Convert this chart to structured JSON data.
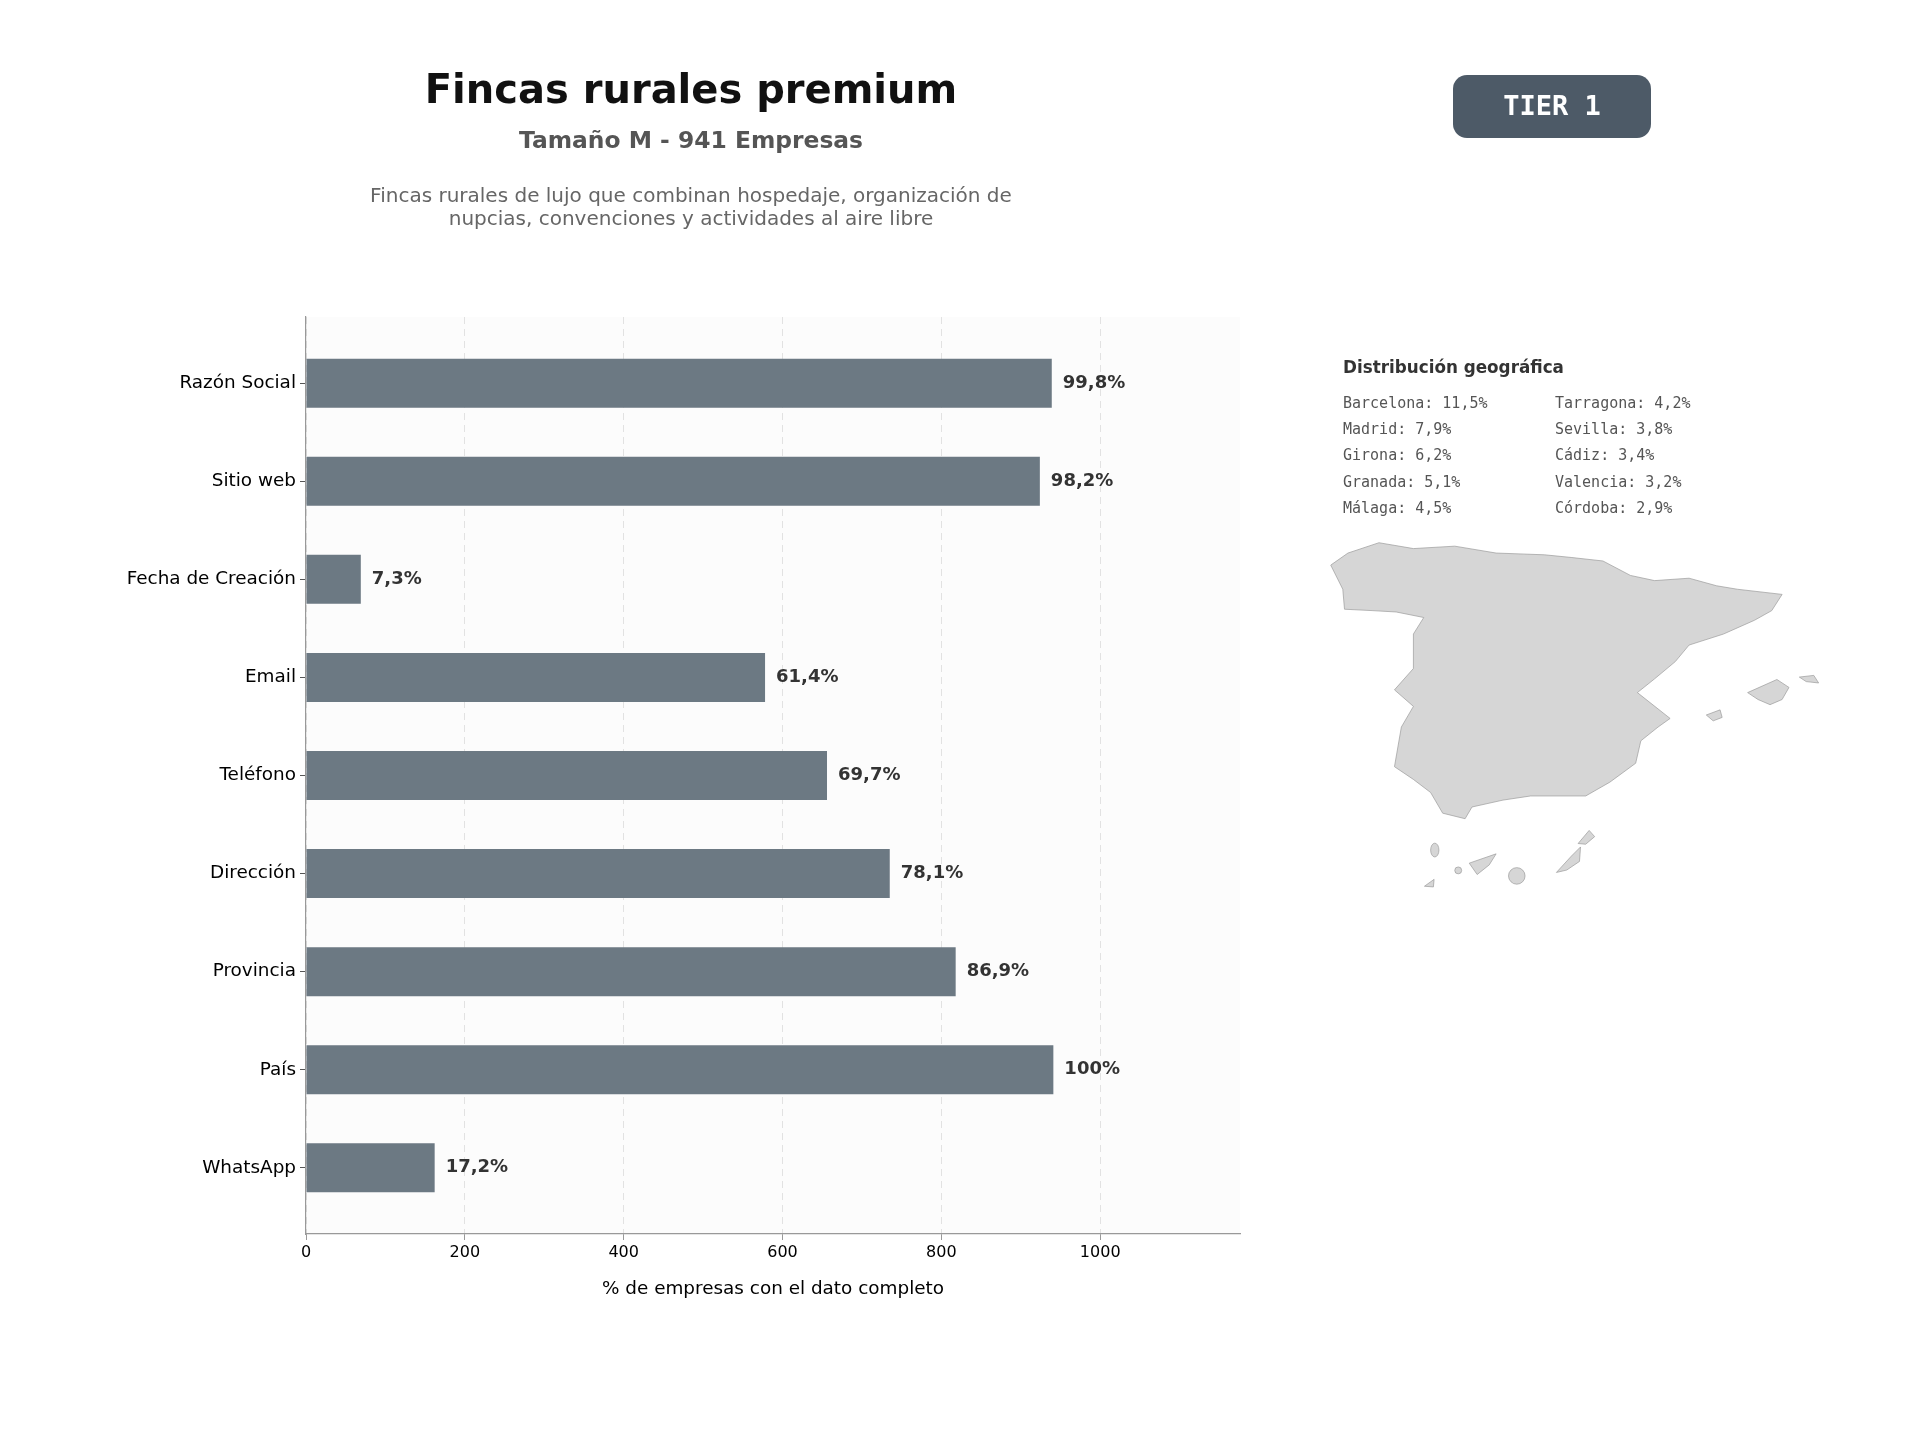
{
  "chart_data": [
    {
      "type": "bar",
      "orientation": "horizontal",
      "title": "Fincas rurales premium",
      "subtitle": "Tamaño M - 941 Empresas",
      "annotations": [
        "Fincas rurales de lujo que combinan hospedaje, organización de nupcias, convenciones y actividades al aire libre",
        "TIER 1",
        {
          "text": "99,8%",
          "x": 939,
          "y": "Razón Social"
        },
        {
          "text": "98,2%",
          "x": 924,
          "y": "Sitio web"
        },
        {
          "text": "7,3%",
          "x": 69,
          "y": "Fecha de Creación"
        },
        {
          "text": "61,4%",
          "x": 578,
          "y": "Email"
        },
        {
          "text": "69,7%",
          "x": 656,
          "y": "Teléfono"
        },
        {
          "text": "78,1%",
          "x": 735,
          "y": "Dirección"
        },
        {
          "text": "86,9%",
          "x": 818,
          "y": "Provincia"
        },
        {
          "text": "100%",
          "x": 941,
          "y": "País"
        },
        {
          "text": "17,2%",
          "x": 162,
          "y": "WhatsApp"
        }
      ],
      "categories": [
        "Razón Social",
        "Sitio web",
        "Fecha de Creación",
        "Email",
        "Teléfono",
        "Dirección",
        "Provincia",
        "País",
        "WhatsApp"
      ],
      "values": [
        939,
        924,
        69,
        578,
        656,
        735,
        818,
        941,
        162
      ],
      "color": "#6c7983",
      "xlabel": "% de empresas con el dato completo",
      "xlim": [
        0,
        1176
      ],
      "xticks": [
        0,
        200,
        400,
        600,
        800,
        1000
      ],
      "grid": "x"
    },
    {
      "type": "other",
      "title": "Distribución geográfica",
      "annotations": [
        "Barcelona: 11,5%",
        "Madrid: 7,9%",
        "Girona: 6,2%",
        "Granada: 5,1%",
        "Málaga: 4,5%",
        "Tarragona: 4,2%",
        "Sevilla: 3,8%",
        "Cádiz: 3,4%",
        "Valencia: 3,2%",
        "Córdoba: 2,9%"
      ]
    }
  ]
}
